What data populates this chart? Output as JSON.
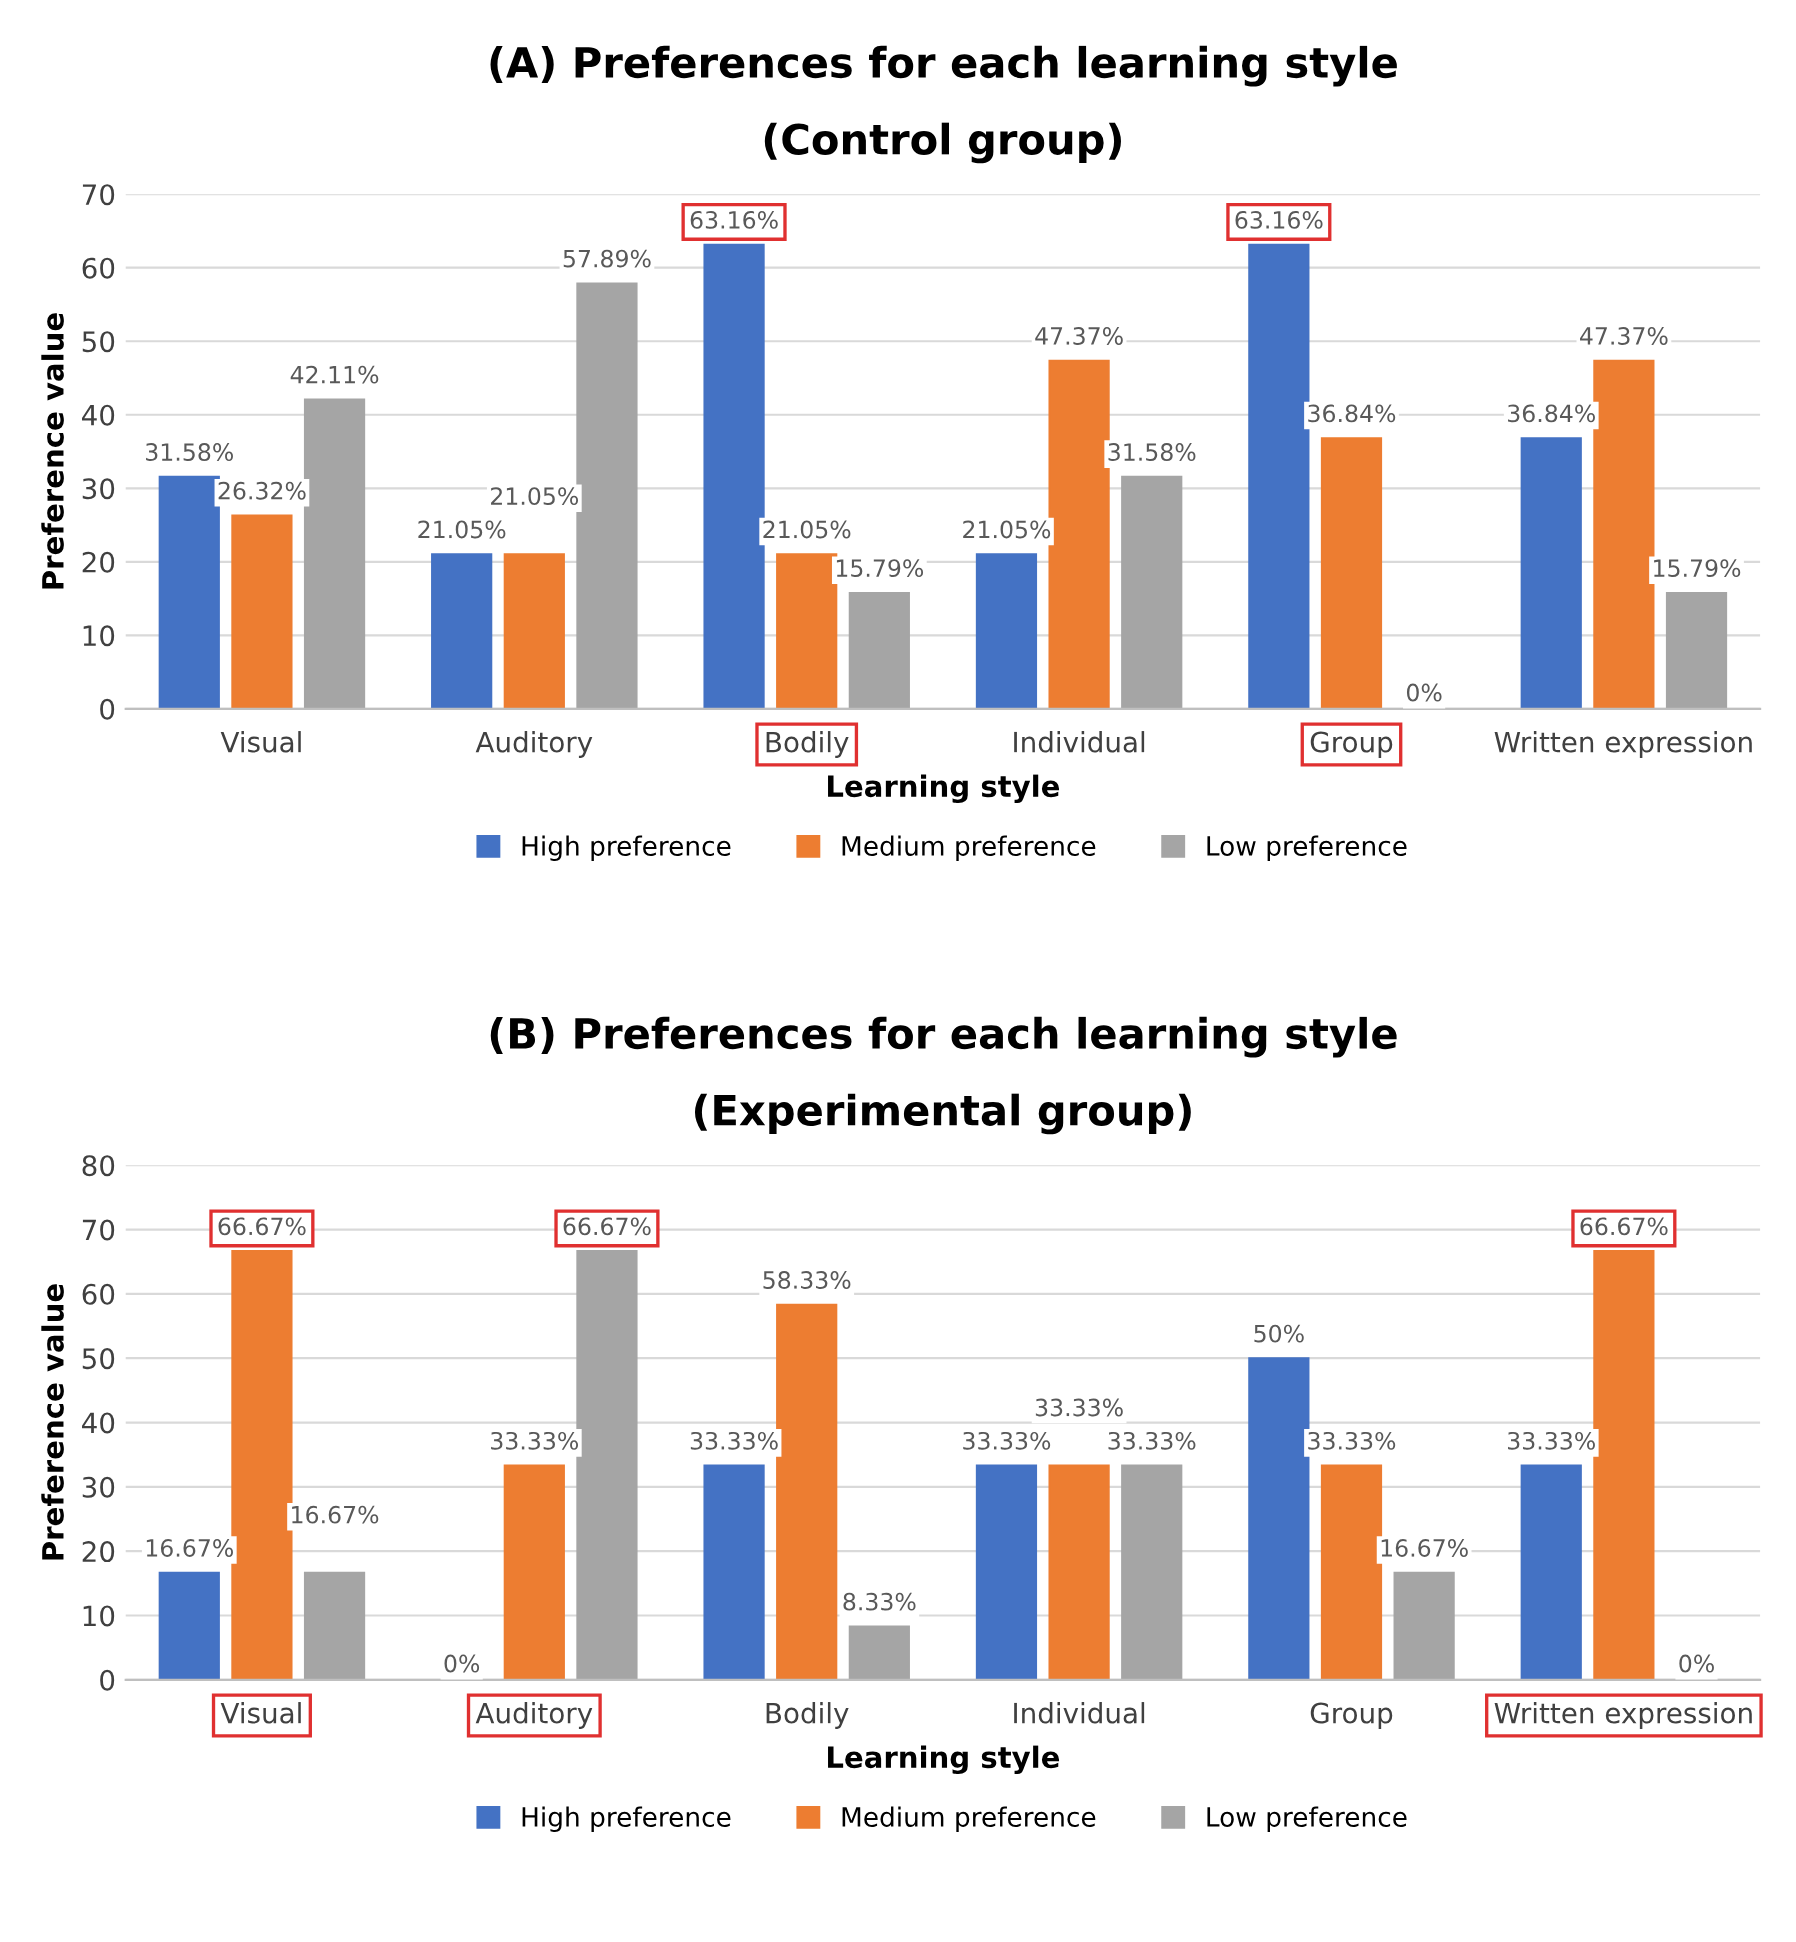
{
  "chart_data": [
    {
      "type": "bar",
      "title": "(A) Preferences for each learning style",
      "subtitle": "(Control group)",
      "xlabel": "Learning style",
      "ylabel": "Preference value",
      "categories": [
        "Visual",
        "Auditory",
        "Bodily",
        "Individual",
        "Group",
        "Written expression"
      ],
      "series": [
        {
          "name": "High preference",
          "color": "#4472c4",
          "values": [
            31.58,
            21.05,
            63.16,
            21.05,
            63.16,
            36.84
          ],
          "value_labels": [
            "31.58%",
            "21.05%",
            "63.16%",
            "21.05%",
            "63.16%",
            "36.84%"
          ]
        },
        {
          "name": "Medium preference",
          "color": "#ed7d31",
          "values": [
            26.32,
            21.05,
            21.05,
            47.37,
            36.84,
            47.37
          ],
          "value_labels": [
            "26.32%",
            "21.05%",
            "21.05%",
            "47.37%",
            "36.84%",
            "47.37%"
          ]
        },
        {
          "name": "Low preference",
          "color": "#a5a5a5",
          "values": [
            42.11,
            57.89,
            15.79,
            31.58,
            0,
            15.79
          ],
          "value_labels": [
            "42.11%",
            "57.89%",
            "15.79%",
            "31.58%",
            "0%",
            "15.79%"
          ]
        }
      ],
      "ylim": [
        0,
        70
      ],
      "yticks": [
        0,
        10,
        20,
        30,
        40,
        50,
        60,
        70
      ],
      "grid": "y",
      "legend": "bottom"
    },
    {
      "type": "bar",
      "title": "(B) Preferences for each learning style",
      "subtitle": "(Experimental group)",
      "xlabel": "Learning style",
      "ylabel": "Preference value",
      "categories": [
        "Visual",
        "Auditory",
        "Bodily",
        "Individual",
        "Group",
        "Written expression"
      ],
      "series": [
        {
          "name": "High preference",
          "color": "#4472c4",
          "values": [
            16.67,
            0,
            33.33,
            33.33,
            50,
            33.33
          ],
          "value_labels": [
            "16.67%",
            "0%",
            "33.33%",
            "33.33%",
            "50%",
            "33.33%"
          ]
        },
        {
          "name": "Medium preference",
          "color": "#ed7d31",
          "values": [
            66.67,
            33.33,
            58.33,
            33.33,
            33.33,
            66.67
          ],
          "value_labels": [
            "66.67%",
            "33.33%",
            "58.33%",
            "33.33%",
            "33.33%",
            "66.67%"
          ]
        },
        {
          "name": "Low preference",
          "color": "#a5a5a5",
          "values": [
            16.67,
            66.67,
            8.33,
            33.33,
            16.67,
            0
          ],
          "value_labels": [
            "16.67%",
            "66.67%",
            "8.33%",
            "33.33%",
            "16.67%",
            "0%"
          ]
        }
      ],
      "ylim": [
        0,
        80
      ],
      "yticks": [
        0,
        10,
        20,
        30,
        40,
        50,
        60,
        70,
        80
      ],
      "grid": "y",
      "legend": "bottom"
    }
  ]
}
